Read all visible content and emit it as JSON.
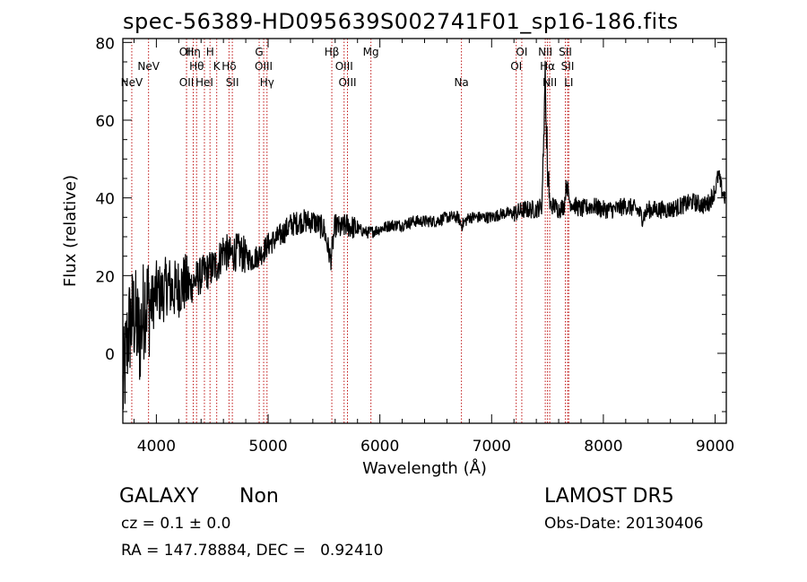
{
  "chart_data": {
    "type": "line",
    "title": "spec-56389-HD095639S002741F01_sp16-186.fits",
    "xlabel": "Wavelength (Å)",
    "ylabel": "Flux (relative)",
    "xlim": [
      3700,
      9100
    ],
    "ylim": [
      -18,
      81
    ],
    "x_ticks": [
      4000,
      5000,
      6000,
      7000,
      8000,
      9000
    ],
    "y_ticks": [
      0,
      20,
      40,
      60,
      80
    ],
    "grid": false,
    "line_color": "#000000",
    "marker_color": "#c01818",
    "series": [
      {
        "x": [
          3700,
          3750,
          3800,
          3850,
          3900,
          3950,
          4000,
          4050,
          4100,
          4150,
          4200,
          4250,
          4300,
          4350,
          4400,
          4450,
          4500,
          4550,
          4600,
          4650,
          4700,
          4750,
          4800,
          4850,
          4900,
          4950,
          5000,
          5100,
          5200,
          5300,
          5400,
          5500,
          5560,
          5600,
          5650,
          5700,
          5800,
          5900,
          6000,
          6100,
          6200,
          6300,
          6400,
          6500,
          6600,
          6700,
          6730,
          6800,
          6900,
          7000,
          7100,
          7200,
          7300,
          7400,
          7450,
          7480,
          7500,
          7520,
          7560,
          7600,
          7650,
          7670,
          7700,
          7750,
          7800,
          7900,
          8000,
          8100,
          8200,
          8300,
          8350,
          8400,
          8500,
          8600,
          8700,
          8800,
          8900,
          8950,
          9000,
          9030,
          9060,
          9090
        ],
        "y": [
          -10,
          6,
          10,
          4,
          14,
          12,
          16,
          15,
          18,
          16,
          17,
          18,
          17,
          19,
          20,
          21,
          22,
          23,
          27,
          25,
          26,
          26,
          25,
          24,
          25,
          26,
          28,
          30,
          33,
          34,
          34,
          32,
          24,
          33,
          32,
          33,
          32,
          31,
          32,
          33,
          33,
          34,
          34,
          34,
          35,
          35,
          33,
          35,
          35,
          35,
          36,
          36,
          37,
          37,
          38,
          72,
          48,
          38,
          38,
          37,
          38,
          44,
          39,
          38,
          37,
          38,
          37,
          37,
          38,
          37,
          35,
          37,
          37,
          37,
          38,
          39,
          38,
          39,
          42,
          46,
          42,
          40
        ]
      }
    ],
    "lines": [
      {
        "label": "NeV",
        "x": 3780,
        "row": 2
      },
      {
        "label": "NeV",
        "x": 3930,
        "row": 1
      },
      {
        "label": "OII",
        "x": 4270,
        "row": 0
      },
      {
        "label": "OII",
        "x": 4270,
        "row": 2
      },
      {
        "label": "Hη",
        "x": 4330,
        "row": 0
      },
      {
        "label": "Hθ",
        "x": 4360,
        "row": 1
      },
      {
        "label": "HeI",
        "x": 4430,
        "row": 2
      },
      {
        "label": "H",
        "x": 4480,
        "row": 0
      },
      {
        "label": "K",
        "x": 4540,
        "row": 1
      },
      {
        "label": "Hδ",
        "x": 4650,
        "row": 1
      },
      {
        "label": "SII",
        "x": 4680,
        "row": 2
      },
      {
        "label": "G",
        "x": 4920,
        "row": 0
      },
      {
        "label": "OIII",
        "x": 4960,
        "row": 1
      },
      {
        "label": "Hγ",
        "x": 4990,
        "row": 2
      },
      {
        "label": "Hβ",
        "x": 5570,
        "row": 0
      },
      {
        "label": "OIII",
        "x": 5680,
        "row": 1
      },
      {
        "label": "OIII",
        "x": 5710,
        "row": 2
      },
      {
        "label": "Mg",
        "x": 5920,
        "row": 0
      },
      {
        "label": "Na",
        "x": 6730,
        "row": 2
      },
      {
        "label": "OI",
        "x": 7220,
        "row": 1
      },
      {
        "label": "OI",
        "x": 7270,
        "row": 0
      },
      {
        "label": "NII",
        "x": 7480,
        "row": 0
      },
      {
        "label": "Hα",
        "x": 7500,
        "row": 1
      },
      {
        "label": "NII",
        "x": 7520,
        "row": 2
      },
      {
        "label": "SII",
        "x": 7660,
        "row": 0
      },
      {
        "label": "SII",
        "x": 7680,
        "row": 1
      },
      {
        "label": "LI",
        "x": 7690,
        "row": 2
      }
    ]
  },
  "footer": {
    "object_class": "GALAXY",
    "subclass": "Non",
    "survey": "LAMOST DR5",
    "cz": "cz = 0.1 ± 0.0",
    "obs_date": "Obs-Date: 20130406",
    "coords": "RA = 147.78884, DEC =   0.92410"
  }
}
